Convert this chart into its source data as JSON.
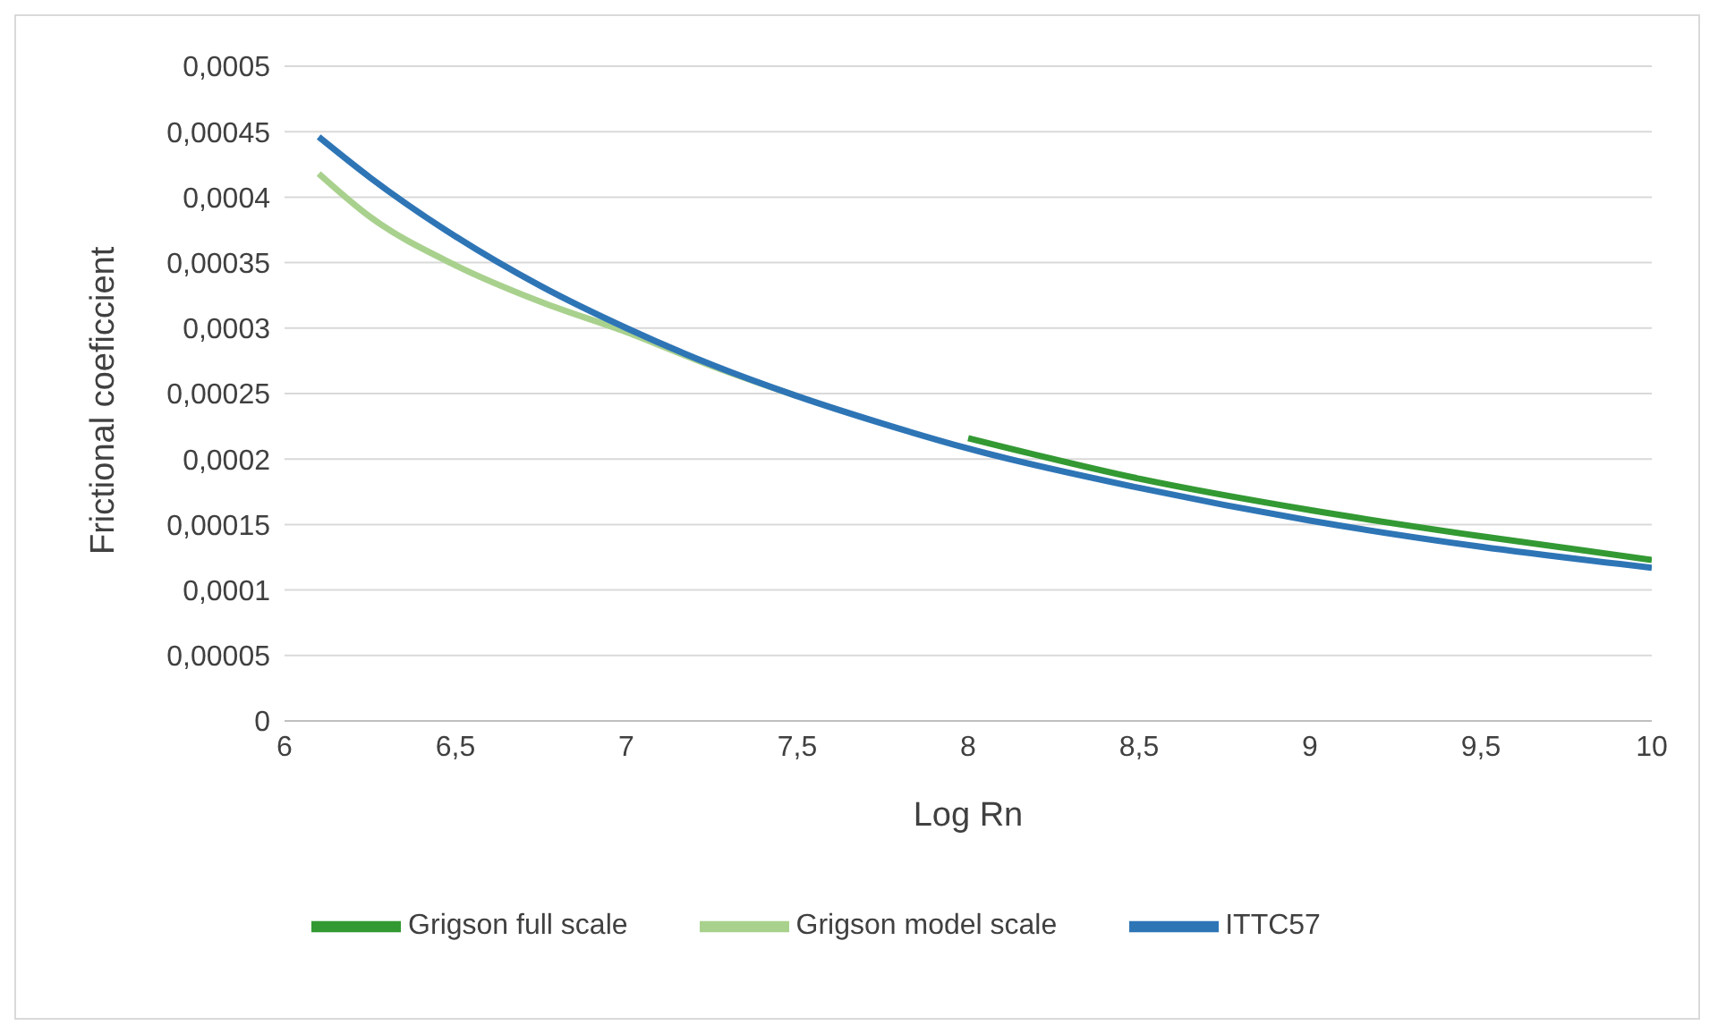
{
  "chart_data": {
    "type": "line",
    "xlabel": "Log Rn",
    "ylabel": "Frictional coeficcient",
    "xlim": [
      6,
      10
    ],
    "xticks": [
      {
        "value": 6,
        "label": "6"
      },
      {
        "value": 6.5,
        "label": "6,5"
      },
      {
        "value": 7,
        "label": "7"
      },
      {
        "value": 7.5,
        "label": "7,5"
      },
      {
        "value": 8,
        "label": "8"
      },
      {
        "value": 8.5,
        "label": "8,5"
      },
      {
        "value": 9,
        "label": "9"
      },
      {
        "value": 9.5,
        "label": "9,5"
      },
      {
        "value": 10,
        "label": "10"
      }
    ],
    "ylim": [
      0,
      0.0005
    ],
    "yticks": [
      {
        "value": 0,
        "label": "0"
      },
      {
        "value": 5e-05,
        "label": "0,00005"
      },
      {
        "value": 0.0001,
        "label": "0,0001"
      },
      {
        "value": 0.00015,
        "label": "0,00015"
      },
      {
        "value": 0.0002,
        "label": "0,0002"
      },
      {
        "value": 0.00025,
        "label": "0,00025"
      },
      {
        "value": 0.0003,
        "label": "0,0003"
      },
      {
        "value": 0.00035,
        "label": "0,00035"
      },
      {
        "value": 0.0004,
        "label": "0,0004"
      },
      {
        "value": 0.00045,
        "label": "0,00045"
      },
      {
        "value": 0.0005,
        "label": "0,0005"
      }
    ],
    "grid": "y",
    "legend": "bottom",
    "marker": "none",
    "line_style": "solid",
    "series": [
      {
        "name": "Grigson full scale",
        "color": "#339933",
        "x": [
          8,
          8.5,
          9,
          9.5,
          10
        ],
        "values": [
          0.000216,
          0.000185,
          0.000161,
          0.000141,
          0.000123
        ]
      },
      {
        "name": "Grigson model scale",
        "color": "#a9d18e",
        "x": [
          6.1,
          6.25,
          6.5,
          6.75,
          7,
          7.25,
          7.5
        ],
        "values": [
          0.000418,
          0.000385,
          0.000348,
          0.00032,
          0.000297,
          0.000271,
          0.000248
        ]
      },
      {
        "name": "ITTC57",
        "color": "#2e75b6",
        "x": [
          6.1,
          6.25,
          6.5,
          6.75,
          7,
          7.25,
          7.5,
          7.75,
          8,
          8.5,
          9,
          9.5,
          10
        ],
        "values": [
          0.000446,
          0.000415,
          0.00037,
          0.000332,
          0.0003,
          0.000272,
          0.000248,
          0.000227,
          0.000208,
          0.000178,
          0.000153,
          0.000133,
          0.000117
        ]
      }
    ]
  }
}
